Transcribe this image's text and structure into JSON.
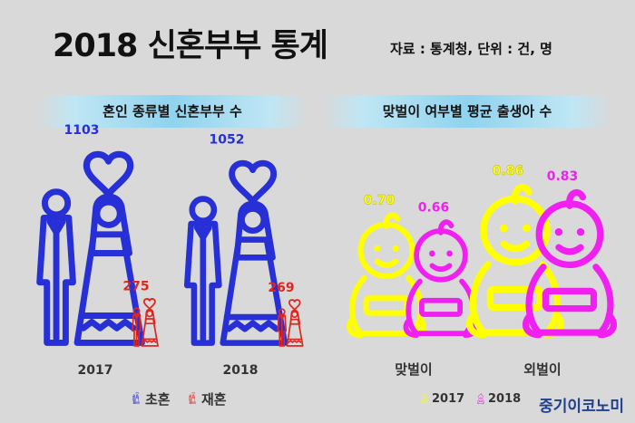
{
  "header": {
    "title": "2018 신혼부부 통계",
    "source": "자료 : 통계청, 단위 : 건, 명"
  },
  "credit": "중기이코노미",
  "colors": {
    "first_marriage": "#2630d6",
    "remarriage": "#e0261f",
    "y2017": "#ffff00",
    "y2018": "#f020f0",
    "background": "#d9d9d9"
  },
  "chart_data": [
    {
      "type": "bar",
      "title": "혼인 종류별 신혼부부 수",
      "categories": [
        "2017",
        "2018"
      ],
      "series": [
        {
          "name": "초혼",
          "values": [
            1103,
            1052
          ],
          "icon": "bride-groom-icon"
        },
        {
          "name": "재혼",
          "values": [
            275,
            269
          ],
          "icon": "bride-groom-icon"
        }
      ],
      "legend": "bottom"
    },
    {
      "type": "bar",
      "title": "맞벌이 여부별 평균 출생아 수",
      "categories": [
        "맞벌이",
        "외벌이"
      ],
      "series": [
        {
          "name": "2017",
          "values": [
            0.7,
            0.86
          ],
          "labels": [
            "0.70",
            "0.86"
          ],
          "icon": "baby-icon"
        },
        {
          "name": "2018",
          "values": [
            0.66,
            0.83
          ],
          "labels": [
            "0.66",
            "0.83"
          ],
          "icon": "baby-icon"
        }
      ],
      "legend": "bottom"
    }
  ]
}
